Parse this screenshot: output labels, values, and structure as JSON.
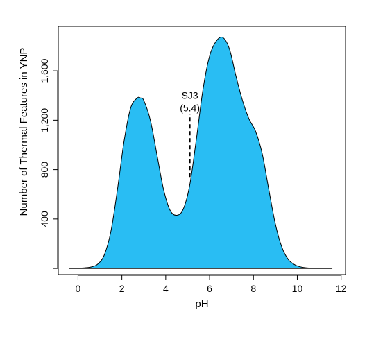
{
  "chart_data": {
    "type": "area",
    "title": "",
    "xlabel": "pH",
    "ylabel": "Number of Thermal Features in YNP",
    "xlim": [
      -0.9,
      12.2
    ],
    "ylim": [
      -50,
      1960
    ],
    "x_ticks": [
      0,
      2,
      4,
      6,
      8,
      10,
      12
    ],
    "y_ticks": [
      400,
      800,
      1200,
      1600
    ],
    "x_tick_labels": [
      "0",
      "2",
      "4",
      "6",
      "8",
      "10",
      "12"
    ],
    "y_tick_labels": [
      "400",
      "800",
      "1,200",
      "1,600"
    ],
    "grid": false,
    "fill_color": "#29BDF3",
    "line_color": "#000000",
    "series": [
      {
        "x": [
          -0.4,
          0.0,
          0.3,
          0.6,
          0.9,
          1.2,
          1.5,
          1.8,
          2.1,
          2.4,
          2.7,
          2.85,
          3.0,
          3.3,
          3.6,
          3.9,
          4.2,
          4.5,
          4.8,
          5.1,
          5.4,
          5.7,
          6.0,
          6.3,
          6.6,
          6.9,
          7.2,
          7.5,
          7.8,
          8.1,
          8.4,
          8.7,
          9.0,
          9.3,
          9.6,
          9.9,
          10.2,
          10.5,
          10.8,
          11.2,
          11.6
        ],
        "y": [
          0,
          2,
          5,
          12,
          35,
          110,
          300,
          640,
          1030,
          1300,
          1380,
          1380,
          1360,
          1200,
          920,
          640,
          470,
          430,
          480,
          680,
          1050,
          1450,
          1720,
          1840,
          1870,
          1780,
          1560,
          1360,
          1210,
          1110,
          930,
          640,
          360,
          170,
          70,
          28,
          10,
          4,
          2,
          1,
          0
        ]
      }
    ],
    "annotation": {
      "label_line1": "SJ3",
      "label_line2": "(5.4)",
      "x": 5.1,
      "y_from": 740,
      "y_to": 1250
    }
  }
}
